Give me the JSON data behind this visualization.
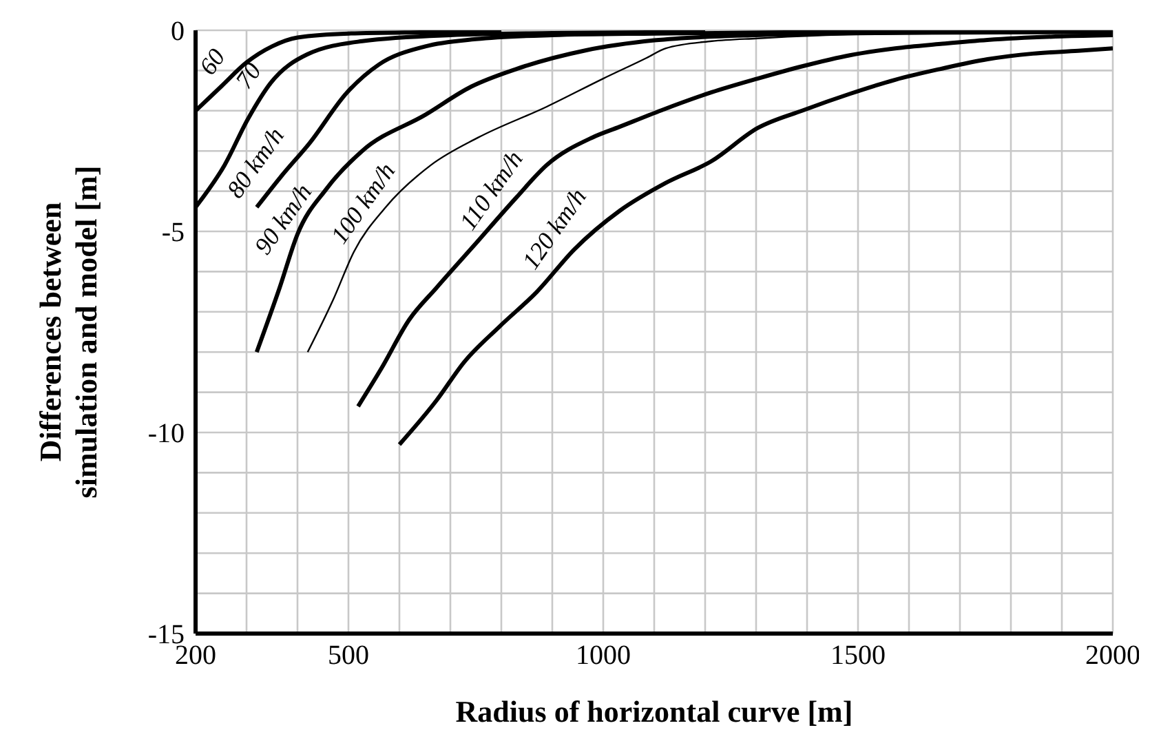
{
  "chart_data": {
    "type": "line",
    "xlabel": "Radius of horizontal curve [m]",
    "ylabel": "Differences between simulation and model [m]",
    "xlim": [
      200,
      2000
    ],
    "ylim": [
      -15,
      0
    ],
    "xticks": [
      200,
      {
        "value": 300,
        "label": null
      },
      {
        "value": 400,
        "label": null
      },
      500,
      {
        "value": 600,
        "label": null
      },
      {
        "value": 700,
        "label": null
      },
      {
        "value": 800,
        "label": null
      },
      {
        "value": 900,
        "label": null
      },
      1000,
      {
        "value": 1100,
        "label": null
      },
      {
        "value": 1200,
        "label": null
      },
      {
        "value": 1300,
        "label": null
      },
      {
        "value": 1400,
        "label": null
      },
      1500,
      {
        "value": 1600,
        "label": null
      },
      {
        "value": 1700,
        "label": null
      },
      {
        "value": 1800,
        "label": null
      },
      {
        "value": 1900,
        "label": null
      },
      2000
    ],
    "yticks": [
      -15,
      {
        "value": -14,
        "label": null
      },
      {
        "value": -13,
        "label": null
      },
      {
        "value": -12,
        "label": null
      },
      {
        "value": -11,
        "label": null
      },
      -10,
      {
        "value": -9,
        "label": null
      },
      {
        "value": -8,
        "label": null
      },
      {
        "value": -7,
        "label": null
      },
      {
        "value": -6,
        "label": null
      },
      -5,
      {
        "value": -4,
        "label": null
      },
      {
        "value": -3,
        "label": null
      },
      {
        "value": -2,
        "label": null
      },
      {
        "value": -1,
        "label": null
      },
      0
    ],
    "grid": true,
    "marker": "none",
    "line_style": "solid",
    "series": [
      {
        "name": "60",
        "color": "#000000",
        "x": [
          200,
          250,
          300,
          350,
          400,
          500,
          650,
          800
        ],
        "values": [
          -2,
          -1.4,
          -0.8,
          -0.4,
          -0.18,
          -0.08,
          -0.05,
          -0.03
        ]
      },
      {
        "name": "70",
        "color": "#000000",
        "x": [
          200,
          257,
          303,
          348,
          419,
          527,
          700,
          900,
          1200
        ],
        "values": [
          -4.4,
          -3.35,
          -2.2,
          -1.3,
          -0.6,
          -0.27,
          -0.12,
          -0.07,
          -0.04
        ]
      },
      {
        "name": "80 km/h",
        "color": "#000000",
        "x": [
          320,
          370,
          424,
          497,
          560,
          651,
          750,
          900,
          1100,
          1400,
          1800
        ],
        "values": [
          -4.4,
          -3.6,
          -2.8,
          -1.55,
          -0.85,
          -0.4,
          -0.22,
          -0.12,
          -0.08,
          -0.05,
          -0.03
        ]
      },
      {
        "name": "90 km/h",
        "color": "#000000",
        "x": [
          320,
          365,
          400,
          457,
          527,
          651,
          741,
          830,
          965,
          1100,
          1300,
          1600,
          2000
        ],
        "values": [
          -8,
          -6.4,
          -5.07,
          -3.94,
          -3.0,
          -2.1,
          -1.4,
          -0.96,
          -0.5,
          -0.25,
          -0.12,
          -0.06,
          -0.04
        ]
      },
      {
        "name": "100 km/h",
        "color": "#000000",
        "x": [
          420,
          470,
          511,
          573,
          662,
          754,
          889,
          1000,
          1086,
          1122,
          1213,
          1303,
          1500,
          2000
        ],
        "values": [
          -8,
          -6.7,
          -5.5,
          -4.4,
          -3.35,
          -2.67,
          -1.9,
          -1.2,
          -0.68,
          -0.45,
          -0.27,
          -0.2,
          -0.1,
          -0.05
        ]
      },
      {
        "name": "110 km/h",
        "color": "#000000",
        "x": [
          519,
          565,
          619,
          673,
          743,
          830,
          889,
          978,
          1032,
          1114,
          1213,
          1303,
          1392,
          1484,
          1573,
          1662,
          1754,
          1900,
          2000
        ],
        "values": [
          -9.35,
          -8.4,
          -7.2,
          -6.4,
          -5.4,
          -4.15,
          -3.35,
          -2.67,
          -2.4,
          -1.99,
          -1.54,
          -1.2,
          -0.89,
          -0.62,
          -0.45,
          -0.34,
          -0.24,
          -0.15,
          -0.12
        ]
      },
      {
        "name": "120 km/h",
        "color": "#000000",
        "x": [
          600,
          673,
          727,
          797,
          870,
          943,
          1032,
          1122,
          1213,
          1303,
          1392,
          1484,
          1573,
          1662,
          1754,
          1843,
          1932,
          2000
        ],
        "values": [
          -10.3,
          -9.2,
          -8.25,
          -7.36,
          -6.5,
          -5.45,
          -4.49,
          -3.8,
          -3.25,
          -2.43,
          -1.99,
          -1.58,
          -1.23,
          -0.96,
          -0.72,
          -0.58,
          -0.51,
          -0.45
        ]
      }
    ]
  }
}
